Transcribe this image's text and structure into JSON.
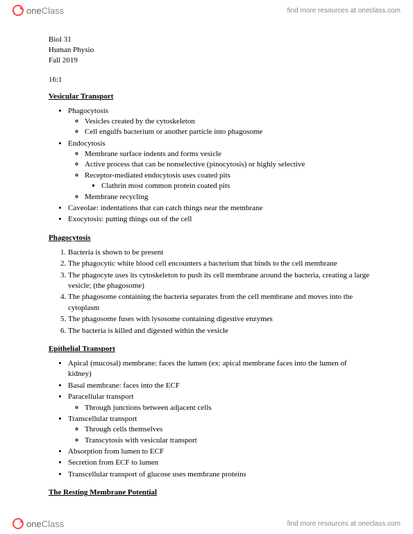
{
  "header": {
    "logo_text_one": "one",
    "logo_text_class": "Class",
    "resources_text": "find more resources at oneclass.com"
  },
  "meta": {
    "course": "Biol 31",
    "subject": "Human Physio",
    "term": "Fall 2019",
    "section": "16:1"
  },
  "sections": {
    "vesicular": {
      "title": "Vesicular Transport",
      "items": [
        {
          "text": "Phagocytosis",
          "sub": [
            "Vesicles created by the cytoskeleton",
            "Cell engulfs bacterium or another particle into phagosome"
          ]
        },
        {
          "text": "Endocytosis",
          "sub": [
            "Membrane surface indents and forms vesicle",
            "Active process that can be nonselective (pinocytosis) or highly selective",
            "Receptor-mediated endocytosis uses coated pits",
            "Membrane recycling"
          ],
          "subsub_at": 2,
          "subsub": [
            "Clathrin most common protein coated pits"
          ]
        },
        {
          "text": "Caveolae: indentations that can catch things near the membrane"
        },
        {
          "text": "Exocytosis: putting things out of the cell"
        }
      ]
    },
    "phagocytosis": {
      "title": "Phagocytosis",
      "steps": [
        "Bacteria is shown to be present",
        "The phagocytic white blood cell encounters a bacterium that binds to the cell membrane",
        "The phagocyte uses its cytoskeleton to push its cell membrane around the bacteria, creating a large vesicle; (the phagosome)",
        "The phagosome containing the bacteria separates from the cell membrane and moves into the cytoplasm",
        "The phagosome fuses with lysosome containing digestive enzymes",
        "The bacteria is killed and digested within the vesicle"
      ]
    },
    "epithelial": {
      "title": "Epithelial Transport",
      "items": [
        {
          "text": "Apical (mucosal) membrane: faces the lumen (ex: apical membrane faces into the lumen of kidney)"
        },
        {
          "text": "Basal membrane: faces into the ECF"
        },
        {
          "text": "Paracellular transport",
          "sub": [
            "Through junctions between adjacent cells"
          ]
        },
        {
          "text": "Transcellular transport",
          "sub": [
            "Through cells themselves",
            "Transcytosis with vesicular transport"
          ]
        },
        {
          "text": "Absorption from lumen to ECF"
        },
        {
          "text": "Secretion from ECF to lumen"
        },
        {
          "text": "Transcellular transport of glucose uses membrane proteins"
        }
      ]
    },
    "resting": {
      "title": "The Resting Membrane Potential"
    }
  },
  "footer": {
    "logo_text_one": "one",
    "logo_text_class": "Class",
    "resources_text": "find more resources at oneclass.com"
  }
}
